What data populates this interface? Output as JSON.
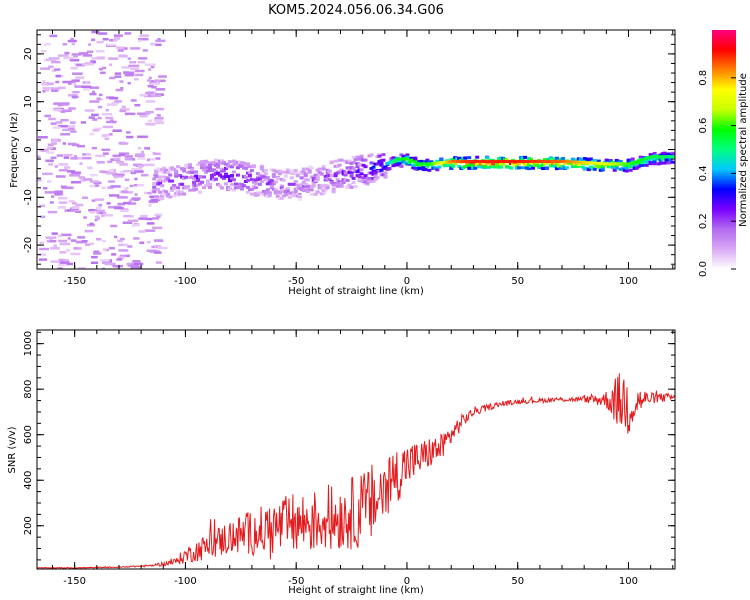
{
  "title": "KOM5.2024.056.06.34.G06",
  "spectrogram": {
    "xlabel": "Height of straight line (km)",
    "ylabel": "Frequency (Hz)",
    "xlim": [
      -167,
      121
    ],
    "ylim": [
      -25,
      25
    ],
    "xticks": [
      -150,
      -100,
      -50,
      0,
      50,
      100
    ],
    "yticks": [
      -20,
      -10,
      0,
      10,
      20
    ],
    "colorbar": {
      "label": "Normalized spectral amplitude",
      "range": [
        0,
        1
      ],
      "ticks": [
        "0.0",
        "0.2",
        "0.4",
        "0.6",
        "0.8"
      ],
      "colors": [
        "#ffffff",
        "#d9a8f5",
        "#b36bf0",
        "#7a00ff",
        "#0000ff",
        "#00c8ff",
        "#00ff80",
        "#00ff00",
        "#c8ff00",
        "#ffff00",
        "#ff8000",
        "#ff0000",
        "#ff0080"
      ]
    }
  },
  "chart_data": [
    {
      "type": "heatmap",
      "title": "KOM5.2024.056.06.34.G06",
      "xlabel": "Height of straight line (km)",
      "ylabel": "Frequency (Hz)",
      "xlim": [
        -167,
        121
      ],
      "ylim": [
        -25,
        25
      ],
      "colorbar_label": "Normalized spectral amplitude",
      "ridge": {
        "x": [
          -115,
          -100,
          -90,
          -80,
          -70,
          -60,
          -50,
          -40,
          -30,
          -20,
          -10,
          -5,
          0,
          5,
          10,
          20,
          30,
          50,
          70,
          90,
          100,
          110,
          121
        ],
        "frequency": [
          -7,
          -6,
          -5,
          -5,
          -6,
          -7,
          -7,
          -6,
          -5,
          -4,
          -3,
          -2,
          -2,
          -3,
          -3,
          -2.5,
          -2.5,
          -2.5,
          -2.5,
          -3,
          -3,
          -1.5,
          -1.5
        ],
        "amplitude": [
          0.2,
          0.25,
          0.25,
          0.3,
          0.25,
          0.2,
          0.2,
          0.2,
          0.25,
          0.3,
          0.4,
          0.55,
          0.6,
          0.55,
          0.6,
          0.85,
          0.9,
          0.9,
          0.85,
          0.7,
          0.6,
          0.55,
          0.5
        ]
      }
    },
    {
      "type": "line",
      "xlabel": "Height of straight line (km)",
      "ylabel": "SNR (v/v)",
      "xlim": [
        -167,
        121
      ],
      "ylim": [
        10,
        1060
      ],
      "yticks": [
        200,
        400,
        600,
        800,
        1000
      ],
      "xticks": [
        -150,
        -100,
        -50,
        0,
        50,
        100
      ],
      "color": "#e41a1c",
      "series": [
        {
          "x": [
            -167,
            -150,
            -130,
            -115,
            -105,
            -100,
            -90,
            -80,
            -70,
            -60,
            -50,
            -40,
            -30,
            -20,
            -15,
            -10,
            -5,
            0,
            5,
            10,
            15,
            20,
            25,
            30,
            40,
            50,
            60,
            70,
            80,
            90,
            95,
            100,
            105,
            110,
            121
          ],
          "values": [
            15,
            15,
            18,
            25,
            40,
            70,
            110,
            150,
            170,
            190,
            210,
            220,
            240,
            270,
            300,
            360,
            420,
            470,
            490,
            520,
            540,
            600,
            660,
            700,
            730,
            745,
            750,
            755,
            755,
            755,
            750,
            740,
            750,
            760,
            765
          ],
          "noise": [
            1,
            2,
            2,
            4,
            15,
            35,
            60,
            80,
            100,
            120,
            140,
            140,
            150,
            170,
            180,
            170,
            130,
            100,
            80,
            70,
            60,
            50,
            30,
            20,
            12,
            10,
            10,
            10,
            12,
            40,
            120,
            160,
            60,
            25,
            15
          ]
        }
      ]
    }
  ],
  "snr": {
    "xlabel": "Height of straight line (km)",
    "ylabel": "SNR (v/v)",
    "xticks": [
      -150,
      -100,
      -50,
      0,
      50,
      100
    ],
    "yticks": [
      200,
      400,
      600,
      800,
      1000
    ]
  }
}
